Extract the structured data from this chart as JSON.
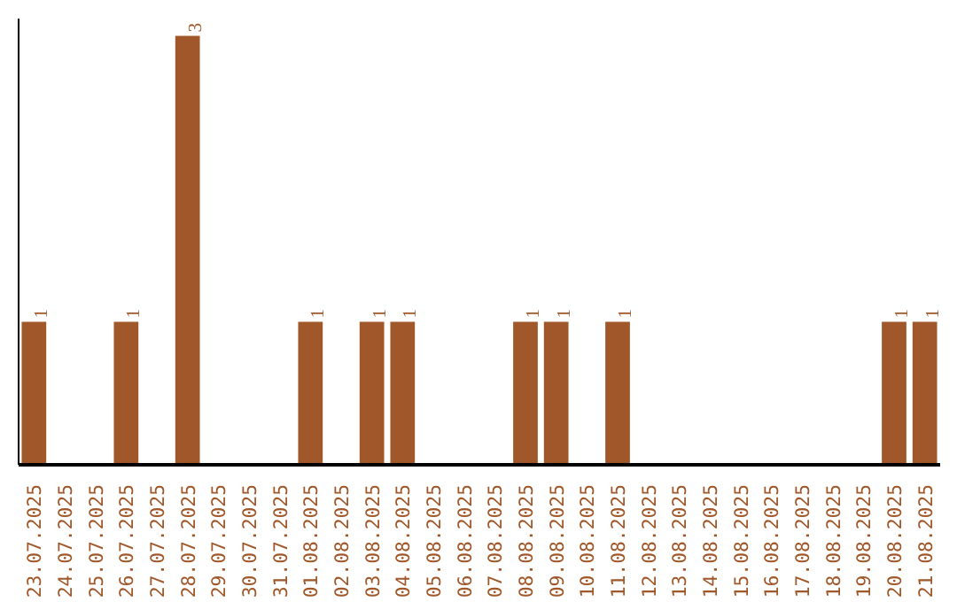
{
  "chart_data": {
    "type": "bar",
    "categories": [
      "23.07.2025",
      "24.07.2025",
      "25.07.2025",
      "26.07.2025",
      "27.07.2025",
      "28.07.2025",
      "29.07.2025",
      "30.07.2025",
      "31.07.2025",
      "01.08.2025",
      "02.08.2025",
      "03.08.2025",
      "04.08.2025",
      "05.08.2025",
      "06.08.2025",
      "07.08.2025",
      "08.08.2025",
      "09.08.2025",
      "10.08.2025",
      "11.08.2025",
      "12.08.2025",
      "13.08.2025",
      "14.08.2025",
      "15.08.2025",
      "16.08.2025",
      "17.08.2025",
      "18.08.2025",
      "19.08.2025",
      "20.08.2025",
      "21.08.2025"
    ],
    "values": [
      1,
      0,
      0,
      1,
      0,
      3,
      0,
      0,
      0,
      1,
      0,
      1,
      1,
      0,
      0,
      0,
      1,
      1,
      0,
      1,
      0,
      0,
      0,
      0,
      0,
      0,
      0,
      0,
      1,
      1
    ],
    "value_labels": [
      "1",
      null,
      null,
      "1",
      null,
      "3",
      null,
      null,
      null,
      "1",
      null,
      "1",
      "1",
      null,
      null,
      null,
      "1",
      "1",
      null,
      "1",
      null,
      null,
      null,
      null,
      null,
      null,
      null,
      null,
      "1",
      "1"
    ],
    "color": "#a0582a"
  }
}
